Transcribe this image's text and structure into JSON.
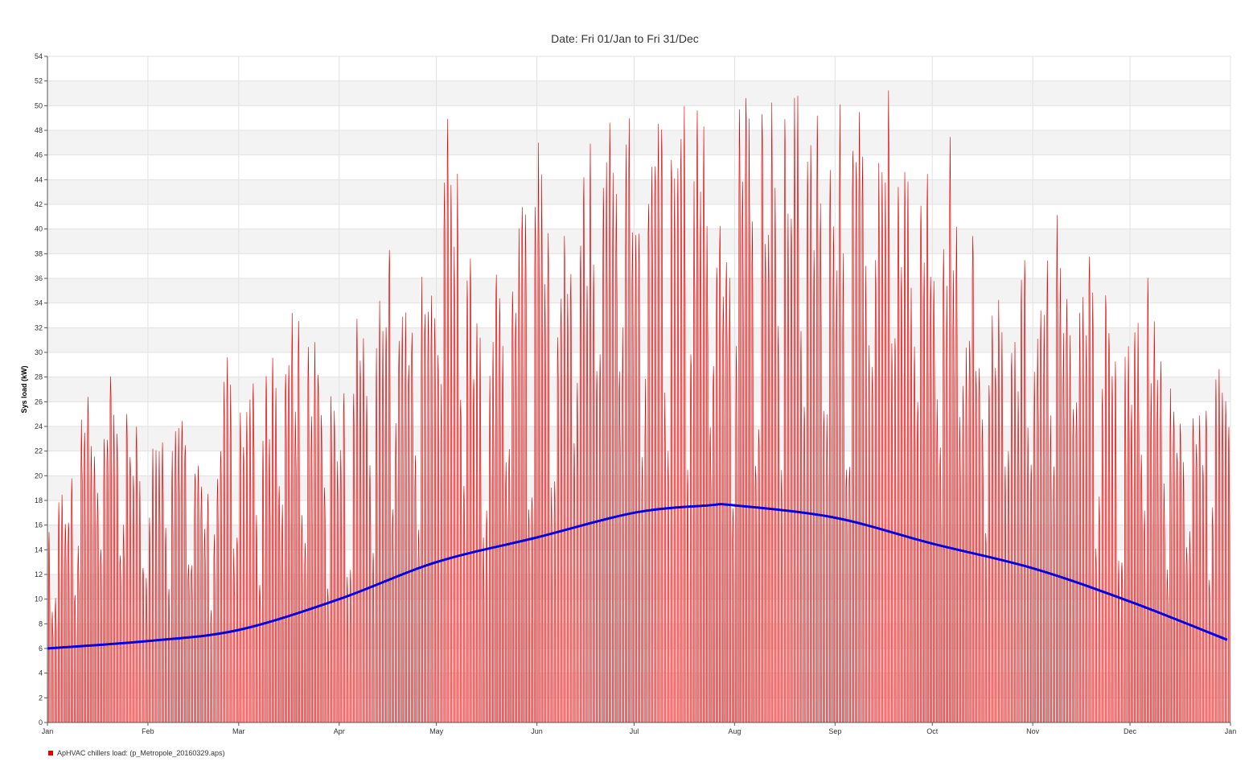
{
  "chart_data": {
    "type": "area",
    "title": "Date: Fri 01/Jan to Fri 31/Dec",
    "xlabel": "",
    "ylabel": "Sys load (kW)",
    "x_range": [
      "Jan 01",
      "Dec 31"
    ],
    "ylim": [
      0,
      54
    ],
    "y_ticks": [
      0,
      2,
      4,
      6,
      8,
      10,
      12,
      14,
      16,
      18,
      20,
      22,
      24,
      26,
      28,
      30,
      32,
      34,
      36,
      38,
      40,
      42,
      44,
      46,
      48,
      50,
      52,
      54
    ],
    "x_ticks": [
      "Jan",
      "Feb",
      "Mar",
      "Apr",
      "May",
      "Jun",
      "Jul",
      "Aug",
      "Sep",
      "Oct",
      "Nov",
      "Dec",
      "Jan"
    ],
    "grid": true,
    "legend_position": "bottom-left",
    "series": [
      {
        "name": "ApHVAC chillers load:  (p_Metropole_20160329.aps)",
        "color": "#e00000",
        "fill": "#ff8080",
        "style": "hourly daily-cycle area",
        "daily_peak_kw": [
          {
            "date": "Jan 01",
            "value": 18.0
          },
          {
            "date": "Jan 07",
            "value": 21.5
          },
          {
            "date": "Jan 11",
            "value": 30.0
          },
          {
            "date": "Jan 21",
            "value": 28.5
          },
          {
            "date": "Jan 23",
            "value": 31.5
          },
          {
            "date": "Feb 01",
            "value": 22.5
          },
          {
            "date": "Feb 07",
            "value": 29.0
          },
          {
            "date": "Feb 12",
            "value": 26.5
          },
          {
            "date": "Feb 19",
            "value": 20.5
          },
          {
            "date": "Feb 24",
            "value": 29.0
          },
          {
            "date": "Feb 26",
            "value": 32.0
          },
          {
            "date": "Mar 04",
            "value": 28.3
          },
          {
            "date": "Mar 10",
            "value": 28.8
          },
          {
            "date": "Mar 15",
            "value": 34.2
          },
          {
            "date": "Mar 24",
            "value": 34.5
          },
          {
            "date": "Mar 30",
            "value": 28.5
          },
          {
            "date": "Apr 07",
            "value": 34.5
          },
          {
            "date": "Apr 12",
            "value": 36.5
          },
          {
            "date": "Apr 19",
            "value": 40.3
          },
          {
            "date": "Apr 26",
            "value": 40.0
          },
          {
            "date": "Apr 30",
            "value": 45.0
          },
          {
            "date": "May 03",
            "value": 50.8
          },
          {
            "date": "May 12",
            "value": 38.0
          },
          {
            "date": "May 19",
            "value": 38.0
          },
          {
            "date": "May 26",
            "value": 40.3
          },
          {
            "date": "Jun 01",
            "value": 50.8
          },
          {
            "date": "Jun 08",
            "value": 38.0
          },
          {
            "date": "Jun 14",
            "value": 48.5
          },
          {
            "date": "Jun 19",
            "value": 49.0
          },
          {
            "date": "Jun 25",
            "value": 50.0
          },
          {
            "date": "Jul 01",
            "value": 49.5
          },
          {
            "date": "Jul 05",
            "value": 52.8
          },
          {
            "date": "Jul 12",
            "value": 52.8
          },
          {
            "date": "Jul 19",
            "value": 52.2
          },
          {
            "date": "Jul 26",
            "value": 47.0
          },
          {
            "date": "Aug 02",
            "value": 50.0
          },
          {
            "date": "Aug 08",
            "value": 52.2
          },
          {
            "date": "Aug 16",
            "value": 51.5
          },
          {
            "date": "Aug 25",
            "value": 50.5
          },
          {
            "date": "Sep 06",
            "value": 50.5
          },
          {
            "date": "Sep 13",
            "value": 49.5
          },
          {
            "date": "Sep 19",
            "value": 52.8
          },
          {
            "date": "Sep 23",
            "value": 46.5
          },
          {
            "date": "Oct 04",
            "value": 50.3
          },
          {
            "date": "Oct 12",
            "value": 40.0
          },
          {
            "date": "Oct 18",
            "value": 37.5
          },
          {
            "date": "Oct 25",
            "value": 36.5
          },
          {
            "date": "Nov 01",
            "value": 38.5
          },
          {
            "date": "Nov 08",
            "value": 43.5
          },
          {
            "date": "Nov 14",
            "value": 40.3
          },
          {
            "date": "Nov 21",
            "value": 36.0
          },
          {
            "date": "Nov 27",
            "value": 33.0
          },
          {
            "date": "Dec 03",
            "value": 36.0
          },
          {
            "date": "Dec 08",
            "value": 36.2
          },
          {
            "date": "Dec 14",
            "value": 25.5
          },
          {
            "date": "Dec 20",
            "value": 25.3
          },
          {
            "date": "Dec 28",
            "value": 30.5
          }
        ],
        "daily_low_kw": 0
      },
      {
        "name": "",
        "color": "#0000e6",
        "style": "smooth trend line",
        "points": [
          {
            "date": "Jan 01",
            "value": 6.0
          },
          {
            "date": "Feb 01",
            "value": 6.6
          },
          {
            "date": "Mar 01",
            "value": 7.5
          },
          {
            "date": "Apr 01",
            "value": 10.0
          },
          {
            "date": "May 01",
            "value": 13.0
          },
          {
            "date": "Jun 01",
            "value": 15.0
          },
          {
            "date": "Jul 01",
            "value": 17.0
          },
          {
            "date": "Jul 24",
            "value": 17.6
          },
          {
            "date": "Aug 01",
            "value": 17.6
          },
          {
            "date": "Sep 01",
            "value": 16.6
          },
          {
            "date": "Oct 01",
            "value": 14.5
          },
          {
            "date": "Nov 01",
            "value": 12.5
          },
          {
            "date": "Dec 01",
            "value": 9.8
          },
          {
            "date": "Dec 31",
            "value": 6.7
          }
        ]
      }
    ]
  }
}
